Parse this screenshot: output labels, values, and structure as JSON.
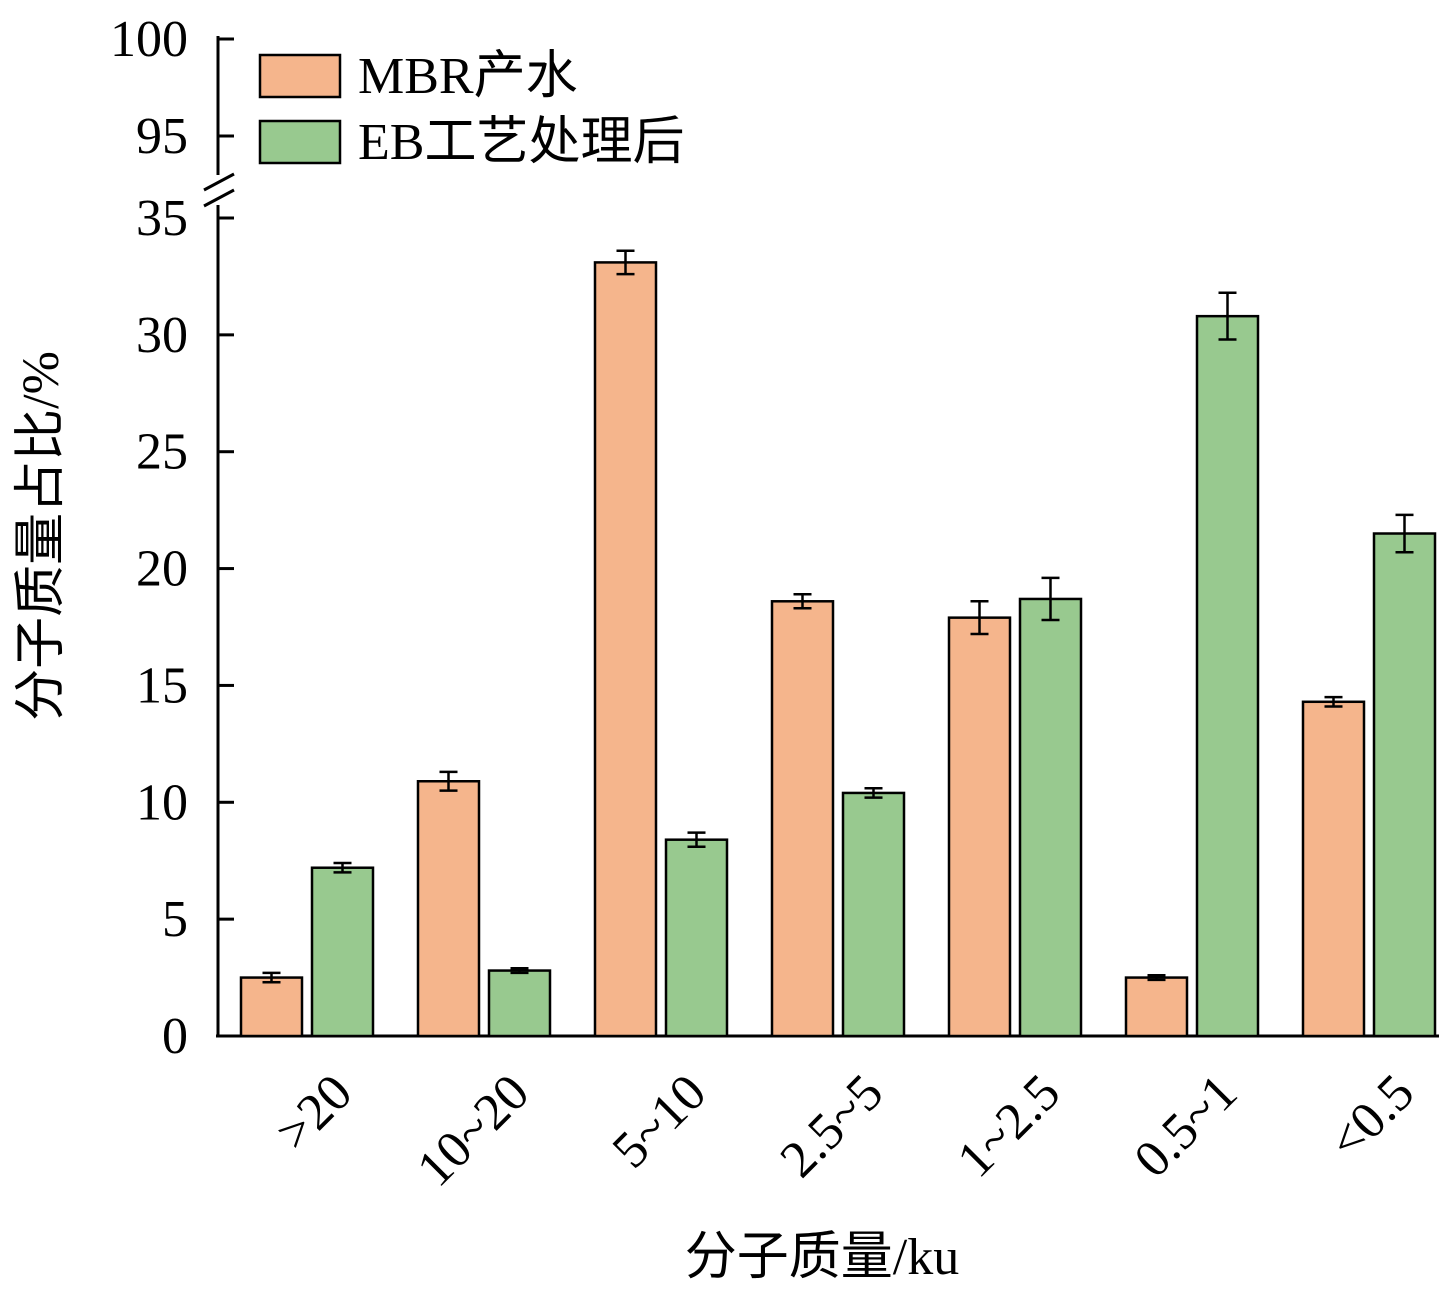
{
  "chart_data": {
    "type": "bar",
    "xlabel": "分子质量/ku",
    "ylabel": "分子质量占比/%",
    "categories": [
      ">20",
      "10~20",
      "5~10",
      "2.5~5",
      "1~2.5",
      "0.5~1",
      "<0.5"
    ],
    "series": [
      {
        "name": "MBR产水",
        "color": "#F5B58C",
        "values": [
          2.5,
          10.9,
          33.1,
          18.6,
          17.9,
          2.5,
          14.3
        ],
        "errors": [
          0.2,
          0.4,
          0.5,
          0.3,
          0.7,
          0.1,
          0.2
        ]
      },
      {
        "name": "EB工艺处理后",
        "color": "#98C98F",
        "values": [
          7.2,
          2.8,
          8.4,
          10.4,
          18.7,
          30.8,
          21.5
        ],
        "errors": [
          0.2,
          0.1,
          0.3,
          0.2,
          0.9,
          1.0,
          0.8
        ]
      }
    ],
    "ylim": [
      0,
      35
    ],
    "yticks": [
      0,
      5,
      10,
      15,
      20,
      25,
      30,
      35
    ],
    "broken_axis": {
      "upper_range": [
        95,
        100
      ],
      "upper_ticks": [
        95,
        100
      ]
    },
    "legend_position": "top-left",
    "grid": false
  }
}
